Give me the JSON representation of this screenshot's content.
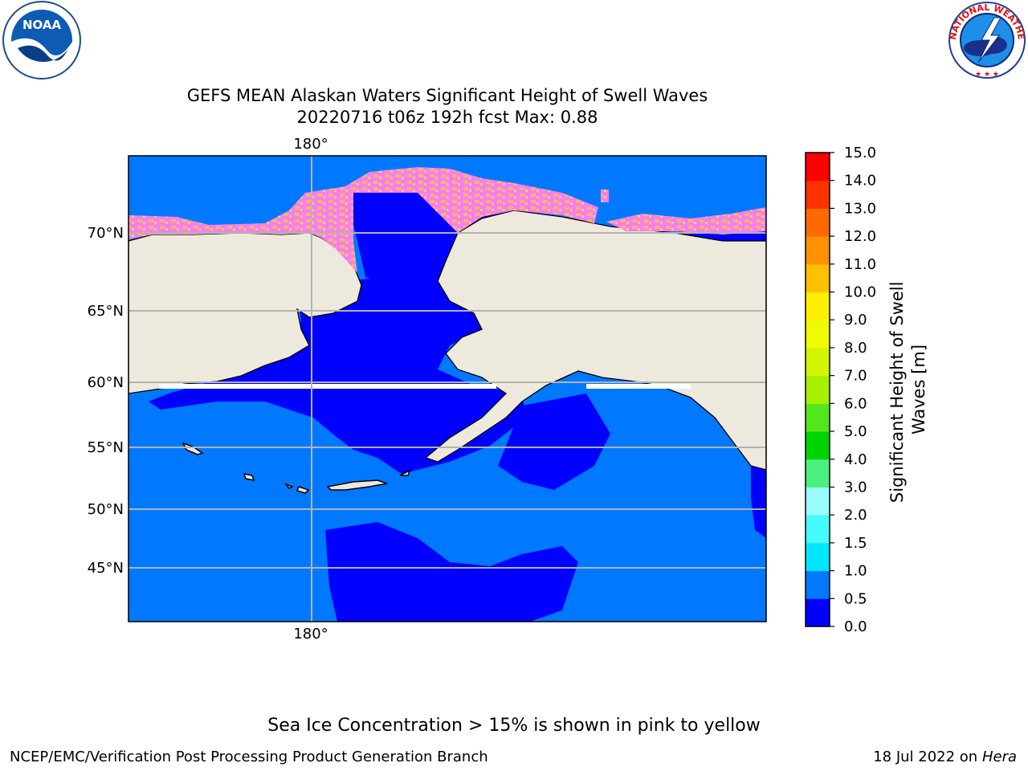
{
  "header": {
    "title_line1": "GEFS MEAN Alaskan Waters Significant Height of Swell Waves",
    "title_line2": "20220716 t06z 192h fcst   Max: 0.88"
  },
  "logos": {
    "left": "noaa-logo",
    "left_text": "NOAA",
    "right": "nws-logo",
    "right_text_top": "NATIONAL WEATHER SERVICE"
  },
  "map": {
    "lon_label_top": "180°",
    "lon_label_bottom": "180°",
    "lat_labels": [
      "70°N",
      "65°N",
      "60°N",
      "55°N",
      "50°N",
      "45°N"
    ],
    "colors": {
      "land": "#ede9dc",
      "water_low": "#0000ff",
      "water_mid": "#0078ff",
      "ice": "#f77df0",
      "ice_warm": "#f9b36b",
      "grid": "#b3b3b3"
    }
  },
  "colorbar": {
    "label": "Significant Height of Swell Waves [m]",
    "label_line1": "Significant Height of Swell",
    "label_line2": "Waves [m]",
    "ticks": [
      "0.0",
      "0.5",
      "1.0",
      "1.5",
      "2.0",
      "3.0",
      "4.0",
      "5.0",
      "6.0",
      "7.0",
      "8.0",
      "9.0",
      "10.0",
      "11.0",
      "12.0",
      "13.0",
      "14.0",
      "15.0"
    ],
    "colors": [
      "#0000ff",
      "#0078ff",
      "#00e6ff",
      "#44fafa",
      "#98fcfc",
      "#4cf080",
      "#00d400",
      "#54e61c",
      "#a8f000",
      "#d2f500",
      "#f0fa00",
      "#ffee00",
      "#ffc000",
      "#ff9000",
      "#ff6a00",
      "#ff3200",
      "#ff0000"
    ]
  },
  "footer": {
    "ice_note": "Sea Ice Concentration > 15% is shown in pink to yellow",
    "left": "NCEP/EMC/Verification Post Processing Product Generation Branch",
    "right_prefix": "18 Jul 2022 on ",
    "right_host": "Hera"
  }
}
